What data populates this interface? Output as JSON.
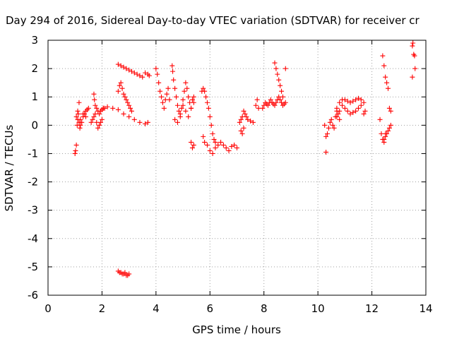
{
  "chart_data": {
    "type": "scatter",
    "title": "Day 294 of 2016, Sidereal Day-to-day VTEC variation (SDTVAR) for receiver cr",
    "xlabel": "GPS time / hours",
    "ylabel": "SDTVAR / TECUs",
    "xlim": [
      0,
      14
    ],
    "ylim": [
      -6,
      3
    ],
    "x_ticks": [
      0,
      2,
      4,
      6,
      8,
      10,
      12,
      14
    ],
    "y_ticks": [
      -6,
      -5,
      -4,
      -3,
      -2,
      -1,
      0,
      1,
      2,
      3
    ],
    "grid": true,
    "marker": "plus",
    "series": [
      {
        "name": "SDTVAR",
        "color": "#ff0000",
        "x": [
          1.0,
          1.02,
          1.05,
          1.08,
          1.1,
          1.12,
          1.15,
          1.18,
          1.2,
          1.25,
          1.3,
          1.35,
          1.4,
          1.45,
          1.5,
          1.05,
          1.1,
          1.15,
          1.2,
          1.3,
          1.4,
          1.6,
          1.65,
          1.7,
          1.75,
          1.8,
          1.85,
          1.9,
          1.95,
          2.0,
          1.7,
          1.72,
          1.75,
          1.8,
          1.85,
          1.9,
          1.95,
          2.0,
          2.05,
          2.1,
          2.05,
          2.2,
          2.4,
          2.6,
          2.8,
          3.0,
          3.2,
          3.4,
          3.6,
          3.7,
          2.6,
          2.7,
          2.8,
          2.9,
          3.0,
          3.1,
          3.2,
          3.3,
          3.4,
          3.5,
          3.6,
          3.7,
          3.75,
          2.6,
          2.65,
          2.7,
          2.75,
          2.8,
          2.85,
          2.9,
          2.95,
          3.0,
          3.05,
          3.1,
          2.6,
          2.65,
          2.7,
          2.75,
          2.8,
          2.85,
          2.9,
          2.95,
          3.0,
          4.0,
          4.05,
          4.1,
          4.15,
          4.2,
          4.25,
          4.3,
          4.35,
          4.4,
          4.45,
          4.5,
          4.6,
          4.62,
          4.65,
          4.7,
          4.75,
          4.8,
          4.85,
          4.9,
          4.95,
          5.0,
          5.05,
          5.1,
          5.15,
          5.2,
          5.25,
          5.3,
          5.35,
          5.4,
          4.7,
          4.8,
          4.9,
          5.0,
          5.1,
          5.2,
          5.3,
          5.4,
          5.3,
          5.35,
          5.4,
          5.7,
          5.75,
          5.8,
          5.85,
          5.9,
          5.95,
          6.0,
          6.05,
          6.1,
          6.15,
          6.2,
          5.75,
          5.8,
          5.9,
          6.0,
          6.1,
          6.2,
          6.3,
          6.4,
          6.5,
          6.6,
          6.7,
          6.8,
          6.9,
          7.0,
          7.1,
          7.15,
          7.2,
          7.25,
          7.3,
          7.35,
          7.4,
          7.5,
          7.6,
          7.15,
          7.2,
          7.25,
          7.7,
          7.75,
          7.8,
          7.95,
          8.0,
          8.05,
          8.1,
          8.15,
          8.2,
          8.25,
          8.3,
          8.35,
          8.4,
          8.45,
          8.5,
          8.55,
          8.6,
          8.65,
          8.7,
          8.75,
          8.8,
          8.4,
          8.45,
          8.5,
          8.55,
          8.6,
          8.65,
          8.7,
          8.8,
          10.25,
          10.3,
          10.35,
          10.4,
          10.45,
          10.5,
          10.55,
          10.6,
          10.65,
          10.7,
          10.75,
          10.8,
          10.3,
          10.7,
          10.8,
          10.9,
          11.0,
          11.1,
          11.2,
          11.3,
          11.4,
          11.5,
          11.6,
          11.7,
          11.75,
          10.7,
          10.8,
          10.9,
          11.0,
          11.1,
          11.2,
          11.3,
          11.4,
          11.5,
          11.6,
          11.7,
          12.3,
          12.35,
          12.4,
          12.45,
          12.5,
          12.55,
          12.6,
          12.65,
          12.7,
          12.4,
          12.45,
          12.5,
          12.55,
          12.6,
          12.65,
          12.7,
          12.45,
          12.5,
          13.5,
          13.52,
          13.55,
          13.58,
          13.6,
          13.5
        ],
        "y": [
          -1.0,
          -0.9,
          -0.7,
          0.0,
          0.2,
          0.4,
          0.1,
          -0.1,
          0.0,
          0.1,
          0.3,
          0.4,
          0.5,
          0.55,
          0.6,
          0.3,
          0.5,
          0.8,
          0.2,
          0.4,
          0.3,
          0.1,
          0.2,
          0.3,
          0.4,
          0.1,
          -0.1,
          0.0,
          0.1,
          0.2,
          1.1,
          0.9,
          0.7,
          0.6,
          0.5,
          0.4,
          0.5,
          0.55,
          0.6,
          0.6,
          0.6,
          0.65,
          0.6,
          0.55,
          0.4,
          0.3,
          0.2,
          0.1,
          0.05,
          0.1,
          2.15,
          2.1,
          2.05,
          2.0,
          1.95,
          1.9,
          1.85,
          1.8,
          1.75,
          1.7,
          1.85,
          1.8,
          1.75,
          1.2,
          1.4,
          1.5,
          1.3,
          1.1,
          1.0,
          0.9,
          0.8,
          0.7,
          0.6,
          0.5,
          -5.15,
          -5.2,
          -5.2,
          -5.25,
          -5.25,
          -5.2,
          -5.3,
          -5.3,
          -5.25,
          2.0,
          1.8,
          1.5,
          1.2,
          1.0,
          0.8,
          0.6,
          0.9,
          1.1,
          1.3,
          0.9,
          2.1,
          1.9,
          1.6,
          1.3,
          1.0,
          0.7,
          0.5,
          0.3,
          0.6,
          0.9,
          1.2,
          1.5,
          1.3,
          1.0,
          0.8,
          0.6,
          0.9,
          1.0,
          0.2,
          0.1,
          0.4,
          0.7,
          0.5,
          0.3,
          0.6,
          0.8,
          -0.6,
          -0.8,
          -0.7,
          1.2,
          1.3,
          1.2,
          1.0,
          0.8,
          0.6,
          0.3,
          0.0,
          -0.3,
          -0.5,
          -0.6,
          -0.4,
          -0.6,
          -0.7,
          -0.9,
          -1.0,
          -0.8,
          -0.7,
          -0.6,
          -0.7,
          -0.8,
          -0.9,
          -0.75,
          -0.7,
          -0.8,
          0.1,
          0.2,
          0.3,
          0.5,
          0.4,
          0.3,
          0.2,
          0.15,
          0.1,
          -0.2,
          -0.3,
          -0.1,
          0.7,
          0.9,
          0.6,
          0.6,
          0.7,
          0.8,
          0.75,
          0.7,
          0.8,
          0.9,
          0.8,
          0.75,
          0.7,
          0.8,
          0.9,
          1.0,
          0.9,
          0.8,
          0.7,
          0.75,
          0.8,
          2.2,
          2.0,
          1.8,
          1.6,
          1.4,
          1.2,
          1.0,
          2.0,
          0.0,
          -0.4,
          -0.3,
          -0.1,
          0.1,
          0.2,
          0.0,
          -0.1,
          0.3,
          0.5,
          0.4,
          0.2,
          -0.95,
          0.6,
          0.8,
          0.9,
          0.9,
          0.85,
          0.8,
          0.85,
          0.9,
          0.95,
          0.9,
          0.8,
          0.5,
          0.3,
          0.5,
          0.7,
          0.6,
          0.5,
          0.4,
          0.45,
          0.5,
          0.6,
          0.7,
          0.4,
          0.2,
          -0.3,
          -0.5,
          -0.6,
          -0.4,
          -0.3,
          -0.2,
          -0.1,
          0.5,
          2.45,
          2.1,
          1.7,
          1.5,
          1.3,
          0.6,
          0.0,
          -0.5,
          -0.3,
          2.8,
          2.9,
          2.5,
          2.45,
          2.0,
          1.7
        ]
      }
    ]
  }
}
